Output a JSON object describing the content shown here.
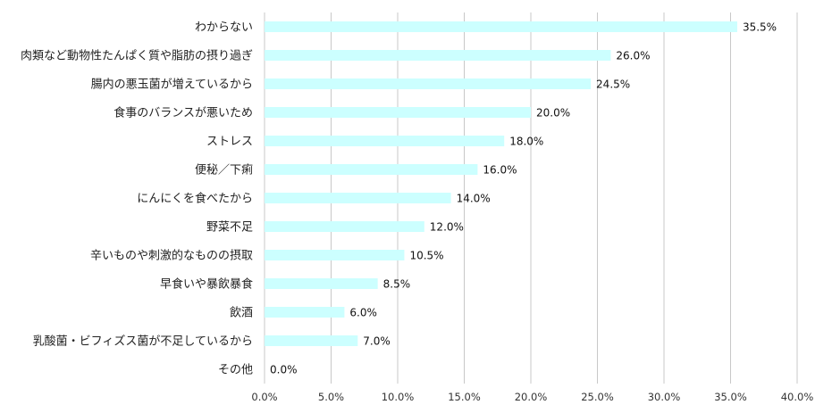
{
  "chart_data": {
    "type": "bar",
    "orientation": "horizontal",
    "categories": [
      "わからない",
      "肉類など動物性たんぱく質や脂肪の摂り過ぎ",
      "腸内の悪玉菌が増えているから",
      "食事のバランスが悪いため",
      "ストレス",
      "便秘／下痢",
      "にんにくを食べたから",
      "野菜不足",
      "辛いものや刺激的なものの摂取",
      "早食いや暴飲暴食",
      "飲酒",
      "乳酸菌・ビフィズス菌が不足しているから",
      "その他"
    ],
    "values": [
      35.5,
      26.0,
      24.5,
      20.0,
      18.0,
      16.0,
      14.0,
      12.0,
      10.5,
      8.5,
      6.0,
      7.0,
      0.0
    ],
    "value_labels": [
      "35.5%",
      "26.0%",
      "24.5%",
      "20.0%",
      "18.0%",
      "16.0%",
      "14.0%",
      "12.0%",
      "10.5%",
      "8.5%",
      "6.0%",
      "7.0%",
      "0.0%"
    ],
    "x_ticks": [
      "0.0%",
      "5.0%",
      "10.0%",
      "15.0%",
      "20.0%",
      "25.0%",
      "30.0%",
      "35.0%",
      "40.0%"
    ],
    "xlim": [
      0,
      40
    ],
    "grid": "vertical",
    "legend": "none",
    "bar_color": "#ccffff",
    "grid_color": "#c8c8c8"
  }
}
